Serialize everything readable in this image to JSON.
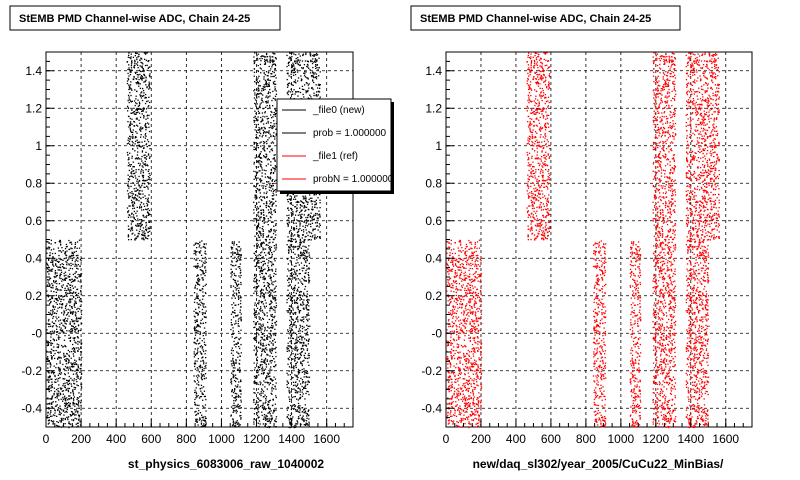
{
  "chart_data": [
    {
      "type": "scatter",
      "title": "StEMB PMD Channel-wise ADC, Chain 24-25",
      "xlabel": "st_physics_6083006_raw_1040002",
      "ylabel": "",
      "xlim": [
        0,
        1750
      ],
      "ylim": [
        -0.5,
        1.5
      ],
      "x_ticks": [
        0,
        200,
        400,
        600,
        800,
        1000,
        1200,
        1400,
        1600
      ],
      "y_ticks": [
        -0.4,
        -0.2,
        0,
        0.2,
        0.4,
        0.6,
        0.8,
        1,
        1.2,
        1.4
      ],
      "y_tick_labels": [
        "-0.4",
        "-0.2",
        "-0",
        "0.2",
        "0.4",
        "0.6",
        "0.8",
        "1",
        "1.2",
        "1.4"
      ],
      "grid": true,
      "marker_color": "#000000",
      "bands": [
        {
          "x": [
            0,
            200
          ],
          "y": [
            -0.5,
            0.5
          ]
        },
        {
          "x": [
            460,
            590
          ],
          "y": [
            0.5,
            1.5
          ]
        },
        {
          "x": [
            840,
            910
          ],
          "y": [
            -0.5,
            0.5
          ]
        },
        {
          "x": [
            1050,
            1110
          ],
          "y": [
            -0.5,
            0.5
          ]
        },
        {
          "x": [
            1180,
            1310
          ],
          "y": [
            -0.5,
            1.5
          ]
        },
        {
          "x": [
            1370,
            1500
          ],
          "y": [
            -0.5,
            1.5
          ]
        },
        {
          "x": [
            1500,
            1560
          ],
          "y": [
            0.5,
            1.5
          ]
        }
      ],
      "legend": {
        "placement": "top-right",
        "entries": [
          {
            "label": "_file0 (new)",
            "color": "#000000"
          },
          {
            "label": "prob = 1.000000",
            "color": "#000000"
          },
          {
            "label": "_file1 (ref)",
            "color": "#ff0000"
          },
          {
            "label": "probN = 1.000000",
            "color": "#ff0000"
          }
        ]
      }
    },
    {
      "type": "scatter",
      "title": "StEMB PMD Channel-wise ADC, Chain 24-25",
      "xlabel": "new/daq_sl302/year_2005/CuCu22_MinBias/",
      "ylabel": "",
      "xlim": [
        0,
        1750
      ],
      "ylim": [
        -0.5,
        1.5
      ],
      "x_ticks": [
        0,
        200,
        400,
        600,
        800,
        1000,
        1200,
        1400,
        1600
      ],
      "y_ticks": [
        -0.4,
        -0.2,
        0,
        0.2,
        0.4,
        0.6,
        0.8,
        1,
        1.2,
        1.4
      ],
      "y_tick_labels": [
        "-0.4",
        "-0.2",
        "-0",
        "0.2",
        "0.4",
        "0.6",
        "0.8",
        "1",
        "1.2",
        "1.4"
      ],
      "grid": true,
      "marker_color": "#ff0000",
      "bands": [
        {
          "x": [
            0,
            200
          ],
          "y": [
            -0.5,
            0.5
          ]
        },
        {
          "x": [
            460,
            590
          ],
          "y": [
            0.5,
            1.5
          ]
        },
        {
          "x": [
            840,
            910
          ],
          "y": [
            -0.5,
            0.5
          ]
        },
        {
          "x": [
            1050,
            1110
          ],
          "y": [
            -0.5,
            0.5
          ]
        },
        {
          "x": [
            1180,
            1310
          ],
          "y": [
            -0.5,
            1.5
          ]
        },
        {
          "x": [
            1370,
            1500
          ],
          "y": [
            -0.5,
            1.5
          ]
        },
        {
          "x": [
            1500,
            1560
          ],
          "y": [
            0.5,
            1.5
          ]
        }
      ]
    }
  ]
}
